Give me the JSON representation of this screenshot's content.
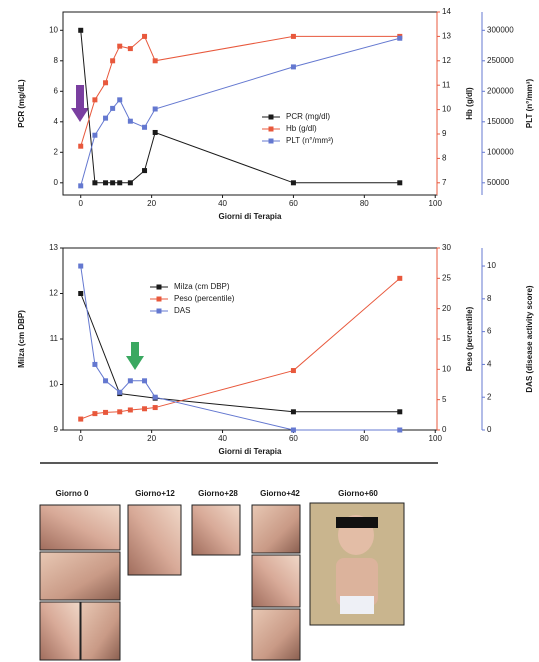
{
  "chart_data": [
    {
      "type": "line",
      "xlabel": "Giorni di Terapia",
      "ylabel": "PCR (mg/dL)",
      "y2label": "Hb (g/dl)",
      "y3label": "PLT (n°/mm³)",
      "xlim": [
        -5,
        100.5
      ],
      "xticks": [
        0,
        20,
        40,
        60,
        80,
        100
      ],
      "ylim": [
        -0.8,
        11.2
      ],
      "yticks": [
        0,
        2,
        4,
        6,
        8,
        10
      ],
      "y2lim": [
        6.5,
        14
      ],
      "y2ticks": [
        7,
        8,
        9,
        10,
        11,
        12,
        13,
        14
      ],
      "y3lim": [
        30000,
        330000
      ],
      "y3ticks": [
        50000,
        100000,
        150000,
        200000,
        250000,
        300000
      ],
      "series": [
        {
          "name": "PCR (mg/dl)",
          "color": "#1a1a1a",
          "axis": "y",
          "x": [
            0,
            4,
            7,
            9,
            11,
            14,
            18,
            21,
            60,
            90
          ],
          "values": [
            10,
            0,
            0,
            0,
            0,
            0,
            0.8,
            3.3,
            0,
            0
          ]
        },
        {
          "name": "Hb (g/dl)",
          "color": "#e8583c",
          "axis": "y2",
          "x": [
            0,
            4,
            7,
            9,
            11,
            14,
            18,
            21,
            60,
            90
          ],
          "values": [
            8.5,
            10.4,
            11.1,
            12,
            12.6,
            12.5,
            13,
            12,
            13,
            13
          ]
        },
        {
          "name": "PLT (n°/mm³)",
          "color": "#6478d0",
          "axis": "y3",
          "x": [
            0,
            4,
            7,
            9,
            11,
            14,
            18,
            21,
            60,
            90
          ],
          "values": [
            45000,
            128000,
            156000,
            172000,
            186000,
            151000,
            141000,
            171000,
            240000,
            287000
          ]
        }
      ]
    },
    {
      "type": "line",
      "xlabel": "Giorni di Terapia",
      "ylabel": "Milza (cm DBP)",
      "y2label": "Peso (percentile)",
      "y3label": "DAS (disease activity score)",
      "xlim": [
        -5,
        100.5
      ],
      "xticks": [
        0,
        20,
        40,
        60,
        80,
        100
      ],
      "ylim": [
        9,
        13
      ],
      "yticks": [
        9,
        10,
        11,
        12,
        13
      ],
      "y2lim": [
        0,
        30
      ],
      "y2ticks": [
        0,
        5,
        10,
        15,
        20,
        25,
        30
      ],
      "y3lim": [
        0,
        11.1
      ],
      "y3ticks": [
        0,
        2,
        4,
        6,
        8,
        10
      ],
      "series": [
        {
          "name": "Milza (cm DBP)",
          "color": "#1a1a1a",
          "axis": "y",
          "x": [
            0,
            11,
            21,
            60,
            90
          ],
          "values": [
            12,
            9.8,
            9.7,
            9.4,
            9.4
          ]
        },
        {
          "name": "Peso (percentile)",
          "color": "#e8583c",
          "axis": "y2",
          "x": [
            0,
            4,
            7,
            11,
            14,
            18,
            21,
            60,
            90
          ],
          "values": [
            1.8,
            2.7,
            2.9,
            3,
            3.3,
            3.5,
            3.7,
            9.8,
            25
          ]
        },
        {
          "name": "DAS",
          "color": "#6478d0",
          "axis": "y3",
          "x": [
            0,
            4,
            7,
            11,
            14,
            18,
            21,
            60,
            90
          ],
          "values": [
            10,
            4,
            3,
            2.3,
            3,
            3,
            2,
            0,
            0
          ]
        }
      ]
    }
  ],
  "photo_labels": [
    "Giorno 0",
    "Giorno+12",
    "Giorno+28",
    "Giorno+42",
    "Giorno+60"
  ]
}
